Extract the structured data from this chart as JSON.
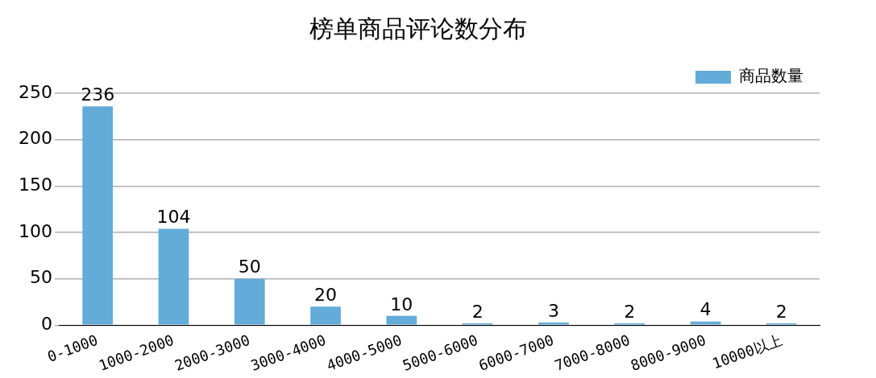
{
  "chart_data": {
    "type": "bar",
    "title": "榜单商品评论数分布",
    "categories": [
      "0-1000",
      "1000-2000",
      "2000-3000",
      "3000-4000",
      "4000-5000",
      "5000-6000",
      "6000-7000",
      "7000-8000",
      "8000-9000",
      "10000以上"
    ],
    "series": [
      {
        "name": "商品数量",
        "color": "#63acda",
        "values": [
          236,
          104,
          50,
          20,
          10,
          2,
          3,
          2,
          4,
          2
        ]
      }
    ],
    "ylim": [
      0,
      250
    ],
    "yticks": [
      0,
      50,
      100,
      150,
      200,
      250
    ],
    "grid": "y",
    "legend": "top right",
    "data_labels": true
  }
}
